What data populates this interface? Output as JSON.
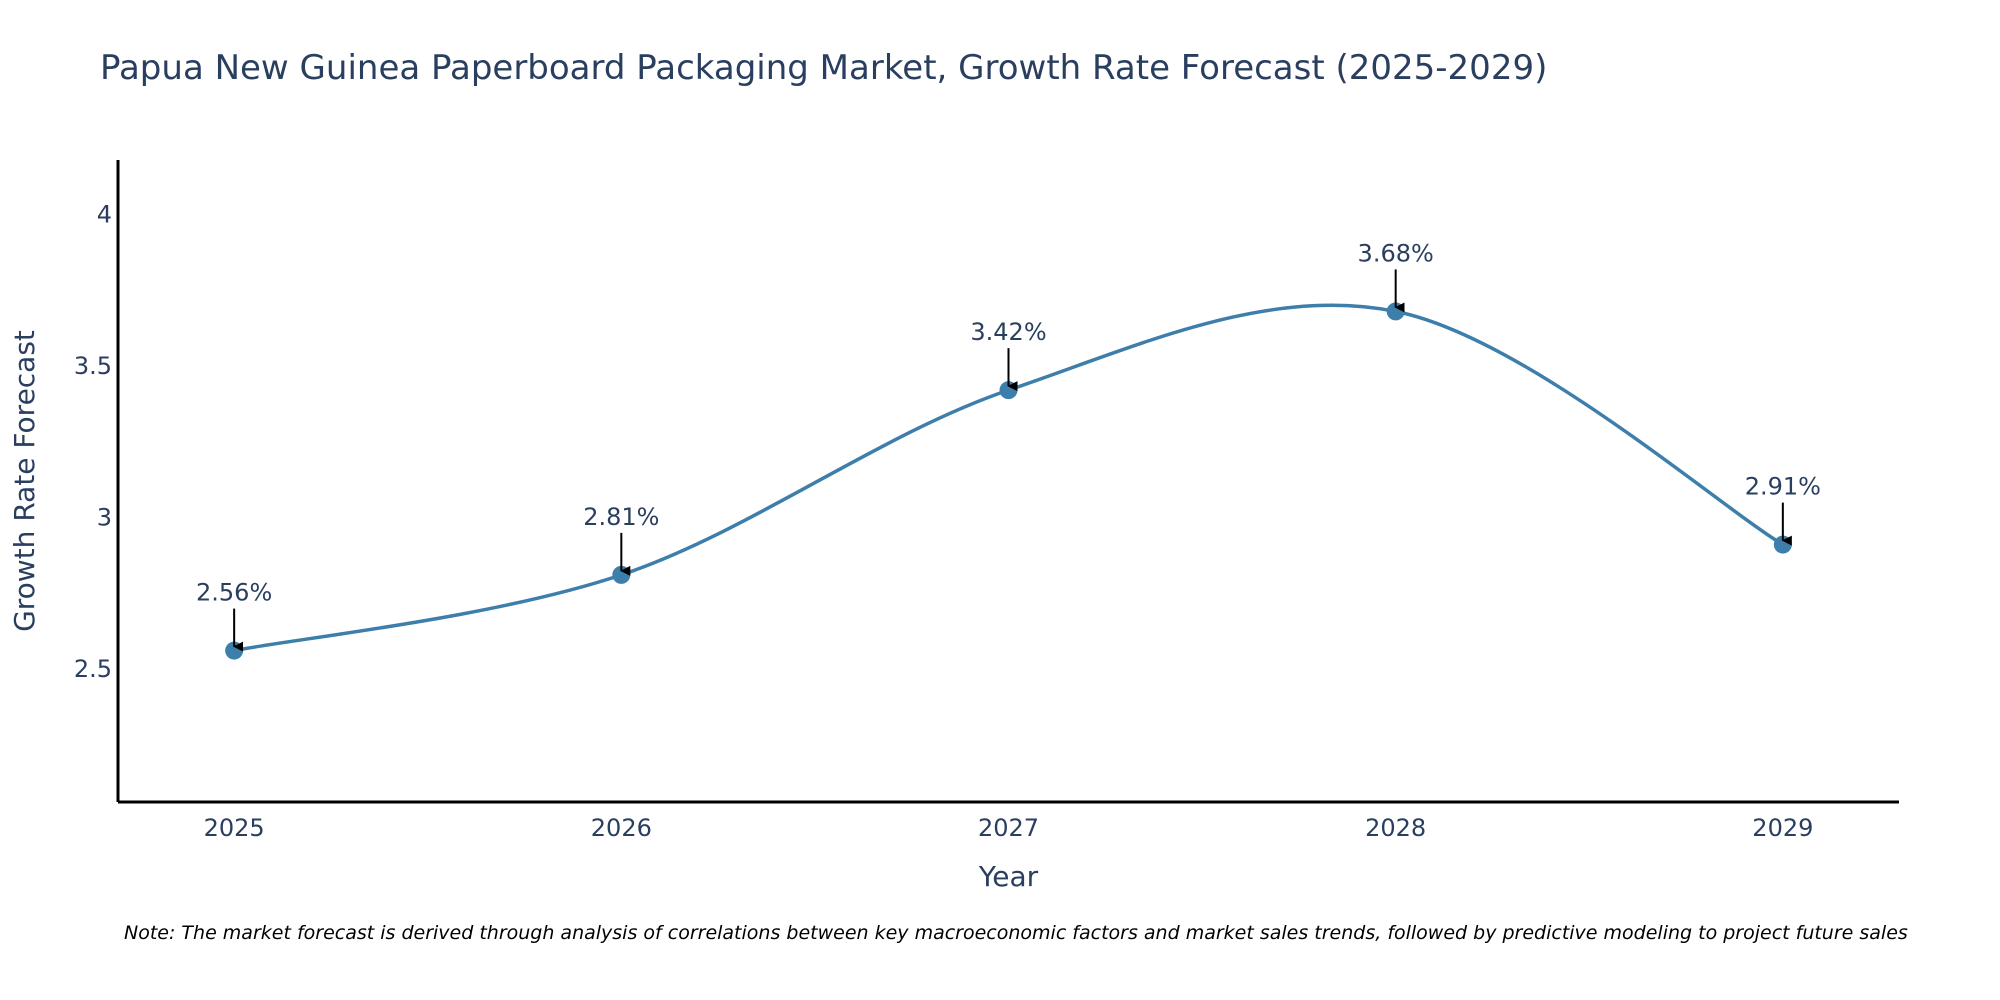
{
  "chart_data": {
    "type": "line",
    "title": "Papua New Guinea Paperboard Packaging Market, Growth Rate Forecast (2025-2029)",
    "xlabel": "Year",
    "ylabel": "Growth Rate Forecast",
    "categories": [
      "2025",
      "2026",
      "2027",
      "2028",
      "2029"
    ],
    "x": [
      2025,
      2026,
      2027,
      2028,
      2029
    ],
    "series": [
      {
        "name": "Growth Rate Forecast",
        "values": [
          2.56,
          2.81,
          3.42,
          3.68,
          2.91
        ],
        "color": "#3d7eab",
        "line_shape": "spline",
        "markers": true
      }
    ],
    "data_labels": [
      "2.56%",
      "2.81%",
      "3.42%",
      "3.68%",
      "2.91%"
    ],
    "annotation_style": "arrow-down-to-point",
    "xlim": [
      2024.7,
      2029.3
    ],
    "ylim": [
      2.06,
      4.18
    ],
    "yticks": [
      2.5,
      3,
      3.5,
      4
    ],
    "ytick_labels": [
      "2.5",
      "3",
      "3.5",
      "4"
    ],
    "xticks": [
      2025,
      2026,
      2027,
      2028,
      2029
    ],
    "xtick_labels": [
      "2025",
      "2026",
      "2027",
      "2028",
      "2029"
    ],
    "grid": false,
    "legend": "none",
    "note": "Note: The market forecast is derived through analysis of correlations between key macroeconomic factors and market sales trends, followed by predictive modeling to project future sales"
  },
  "colors": {
    "line": "#3d7eab",
    "text": "#2a3f5f",
    "axis": "#000000",
    "arrow": "#000000"
  }
}
